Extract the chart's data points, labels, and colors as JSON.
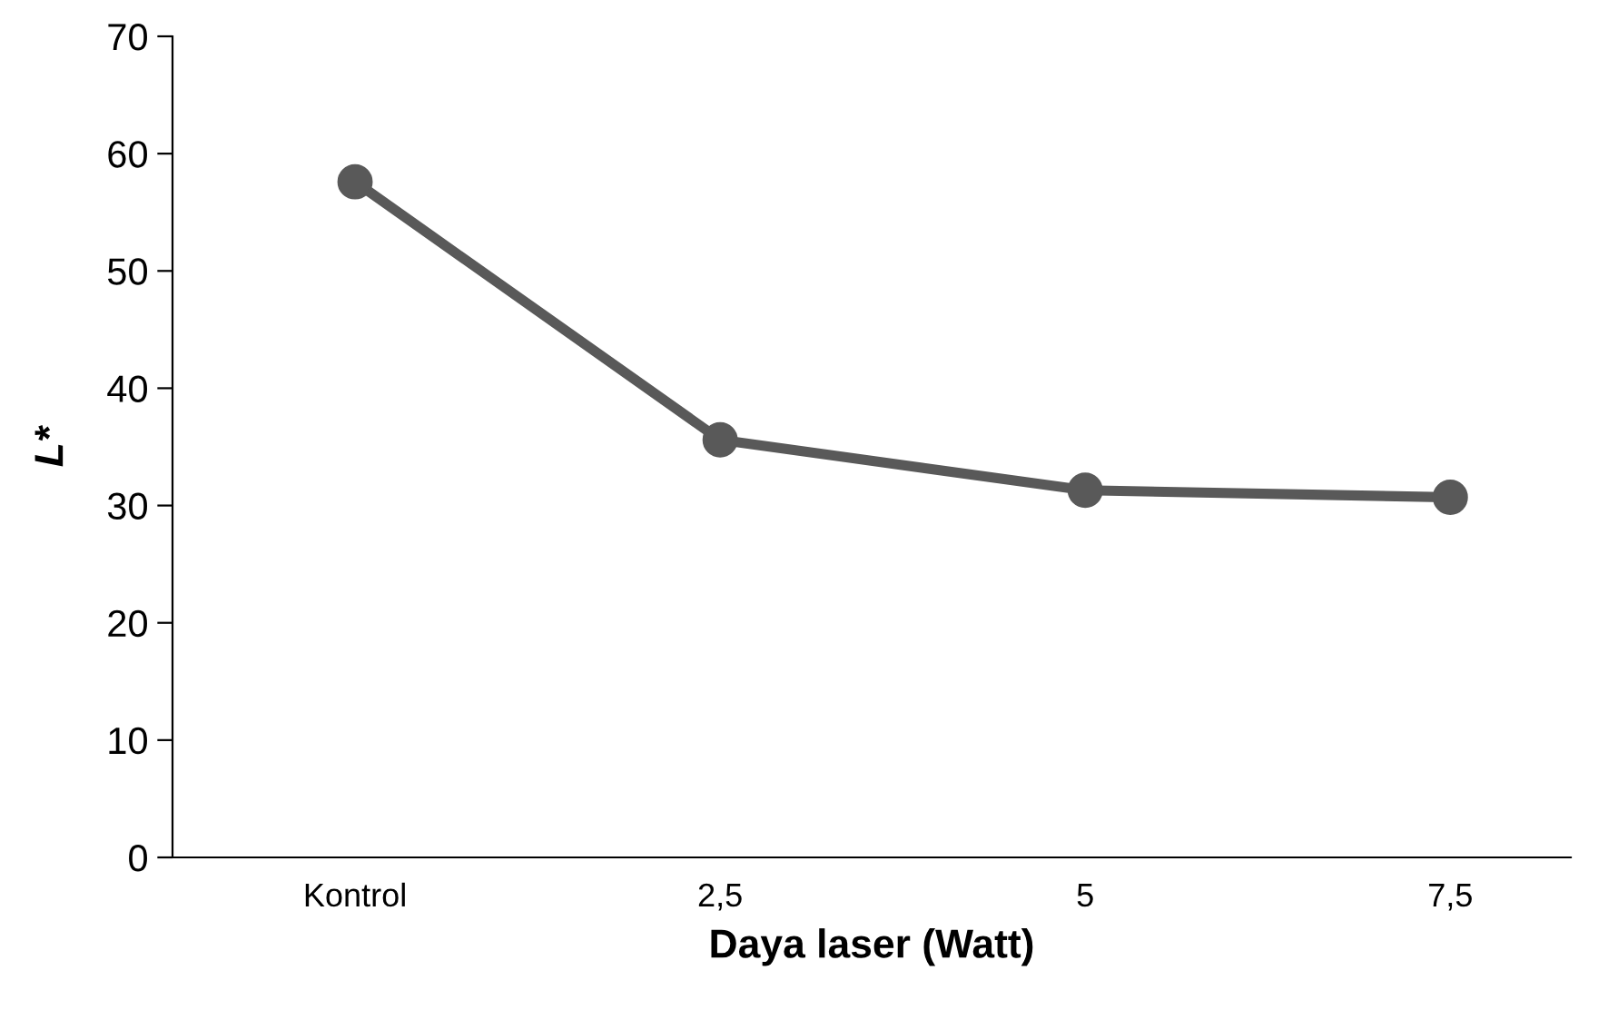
{
  "chart_data": {
    "type": "line",
    "xlabel": "Daya laser (Watt)",
    "ylabel": "L*",
    "categories": [
      "Kontrol",
      "2,5",
      "5",
      "7,5"
    ],
    "series": [
      {
        "color": "#595959",
        "values": [
          57.6,
          35.6,
          31.3,
          30.7
        ]
      }
    ],
    "ylim": [
      0,
      70
    ],
    "yticks": [
      0,
      10,
      20,
      30,
      40,
      50,
      60,
      70
    ],
    "grid": false,
    "marker": "circle",
    "line_style": "solid"
  }
}
